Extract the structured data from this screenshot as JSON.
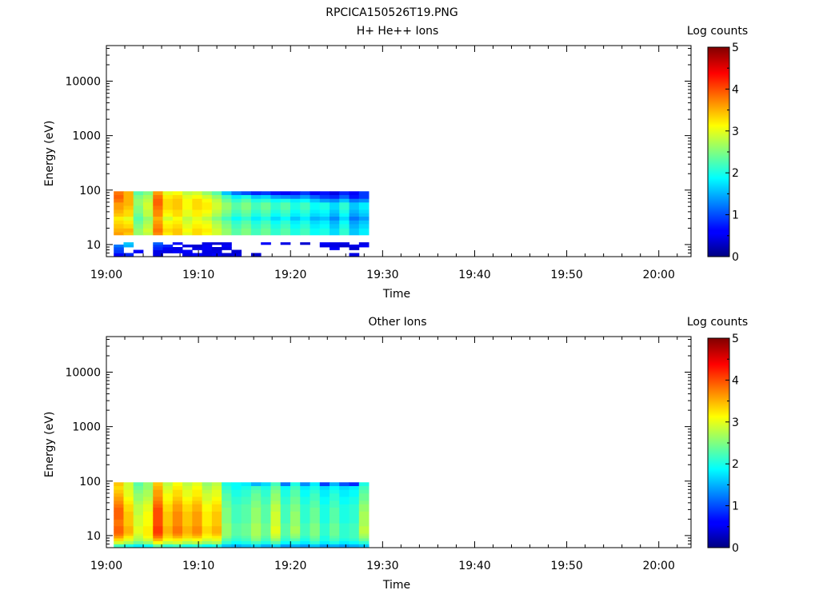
{
  "figure_title": "RPCICA150526T19.PNG",
  "chart_data": [
    {
      "type": "heatmap",
      "title": "H+ He++ Ions",
      "xlabel": "Time",
      "ylabel": "Energy (eV)",
      "x_tick_labels": [
        "19:00",
        "19:10",
        "19:20",
        "19:30",
        "19:40",
        "19:50",
        "20:00"
      ],
      "x_tick_minutes": [
        0,
        10,
        20,
        30,
        40,
        50,
        60
      ],
      "xlim_minutes": [
        0,
        63.5
      ],
      "y_scale": "log",
      "ylim": [
        6,
        45000
      ],
      "y_tick_labels": [
        "10",
        "100",
        "1000",
        "10000"
      ],
      "y_tick_values": [
        10,
        100,
        1000,
        10000
      ],
      "colorbar": {
        "label": "Log counts",
        "range": [
          0,
          5
        ],
        "tick_labels": [
          "0",
          "1",
          "2",
          "3",
          "4",
          "5"
        ]
      },
      "data_time_range_minutes": [
        0.8,
        28.5
      ],
      "bin_edges_eV": [
        6,
        7,
        8,
        9,
        10,
        11,
        13,
        15,
        17,
        20,
        24,
        28,
        33,
        38,
        44,
        52,
        60,
        70,
        82,
        95
      ],
      "z_columns": [
        [
          0.6,
          0.9,
          1.0,
          1.2,
          null,
          null,
          null,
          3.6,
          3.5,
          3.4,
          3.3,
          3.2,
          3.4,
          3.5,
          3.6,
          3.6,
          3.8,
          3.9,
          3.8
        ],
        [
          0.8,
          null,
          null,
          1.5,
          1.6,
          null,
          null,
          3.4,
          3.5,
          3.3,
          3.2,
          3.0,
          3.3,
          3.3,
          3.4,
          3.5,
          3.5,
          3.5,
          3.5
        ],
        [
          null,
          0.6,
          null,
          null,
          null,
          null,
          null,
          2.6,
          2.6,
          2.5,
          2.4,
          2.3,
          2.4,
          2.5,
          2.5,
          2.6,
          2.6,
          2.5,
          2.3
        ],
        [
          null,
          null,
          null,
          null,
          null,
          null,
          null,
          2.8,
          2.9,
          2.8,
          2.7,
          2.6,
          2.8,
          2.8,
          2.9,
          2.9,
          2.8,
          2.7,
          2.5
        ],
        [
          0.5,
          0.5,
          0.8,
          0.9,
          1.1,
          null,
          null,
          3.7,
          3.8,
          3.7,
          3.6,
          3.5,
          3.7,
          3.7,
          3.8,
          3.9,
          3.9,
          3.8,
          3.6
        ],
        [
          null,
          0.5,
          0.6,
          0.8,
          null,
          null,
          null,
          3.2,
          3.3,
          3.2,
          3.1,
          2.9,
          3.1,
          3.2,
          3.3,
          3.3,
          3.3,
          3.2,
          3.0
        ],
        [
          null,
          0.6,
          0.5,
          null,
          0.6,
          null,
          null,
          3.4,
          3.4,
          3.3,
          3.2,
          3.1,
          3.3,
          3.3,
          3.4,
          3.4,
          3.4,
          3.3,
          3.1
        ],
        [
          0.5,
          0.6,
          null,
          0.5,
          null,
          null,
          null,
          3.0,
          3.1,
          3.0,
          2.9,
          2.8,
          3.0,
          3.0,
          3.1,
          3.1,
          3.1,
          3.0,
          2.8
        ],
        [
          0.6,
          null,
          0.5,
          0.4,
          null,
          null,
          null,
          3.3,
          3.3,
          3.2,
          3.1,
          3.0,
          3.2,
          3.2,
          3.3,
          3.3,
          3.3,
          3.1,
          2.9
        ],
        [
          0.5,
          0.5,
          0.6,
          0.6,
          0.5,
          null,
          null,
          3.1,
          3.2,
          3.1,
          3.0,
          2.8,
          3.0,
          3.1,
          3.2,
          3.2,
          3.1,
          2.9,
          2.6
        ],
        [
          0.6,
          0.5,
          0.4,
          null,
          0.4,
          null,
          null,
          2.9,
          2.9,
          2.8,
          2.7,
          2.5,
          2.7,
          2.8,
          2.9,
          2.9,
          2.8,
          2.6,
          2.3
        ],
        [
          0.4,
          null,
          0.5,
          0.6,
          0.5,
          null,
          null,
          2.6,
          2.6,
          2.5,
          2.4,
          2.2,
          2.4,
          2.5,
          2.6,
          2.6,
          2.4,
          2.2,
          1.6
        ],
        [
          0.5,
          0.4,
          null,
          null,
          null,
          null,
          null,
          2.3,
          2.3,
          2.2,
          2.1,
          1.9,
          2.1,
          2.2,
          2.3,
          2.3,
          2.1,
          1.8,
          1.2
        ],
        [
          null,
          null,
          null,
          null,
          null,
          null,
          null,
          2.5,
          2.5,
          2.4,
          2.3,
          2.1,
          2.3,
          2.4,
          2.5,
          2.5,
          2.3,
          2.0,
          1.0
        ],
        [
          0.4,
          null,
          null,
          null,
          null,
          null,
          null,
          2.2,
          2.2,
          2.1,
          2.0,
          1.8,
          2.0,
          2.1,
          2.2,
          2.2,
          2.0,
          1.6,
          0.8
        ],
        [
          null,
          null,
          null,
          null,
          0.6,
          null,
          null,
          2.4,
          2.4,
          2.3,
          2.2,
          2.0,
          2.2,
          2.3,
          2.4,
          2.4,
          2.1,
          1.7,
          0.9
        ],
        [
          null,
          null,
          null,
          null,
          null,
          null,
          null,
          2.1,
          2.1,
          2.0,
          1.9,
          1.7,
          1.9,
          2.0,
          2.1,
          2.1,
          1.9,
          1.4,
          0.7
        ],
        [
          null,
          null,
          null,
          null,
          0.5,
          null,
          null,
          2.3,
          2.3,
          2.2,
          2.1,
          1.9,
          2.1,
          2.2,
          2.3,
          2.3,
          2.0,
          1.3,
          0.6
        ],
        [
          null,
          null,
          null,
          null,
          null,
          null,
          null,
          2.0,
          2.0,
          1.9,
          1.8,
          1.6,
          1.8,
          1.9,
          2.0,
          2.0,
          1.8,
          1.2,
          0.7
        ],
        [
          null,
          null,
          null,
          null,
          0.4,
          null,
          null,
          2.2,
          2.2,
          2.1,
          2.0,
          1.8,
          2.0,
          2.1,
          2.2,
          2.2,
          1.9,
          1.4,
          0.9
        ],
        [
          null,
          null,
          null,
          null,
          null,
          null,
          null,
          1.9,
          1.9,
          1.8,
          1.7,
          1.5,
          1.7,
          1.8,
          1.9,
          1.9,
          1.6,
          1.1,
          0.6
        ],
        [
          null,
          null,
          null,
          0.5,
          0.6,
          null,
          null,
          2.0,
          2.0,
          1.9,
          1.8,
          1.6,
          1.8,
          1.9,
          2.0,
          2.0,
          1.4,
          0.9,
          0.7
        ],
        [
          null,
          null,
          0.6,
          0.5,
          0.5,
          null,
          null,
          1.7,
          1.7,
          1.6,
          1.5,
          1.3,
          1.5,
          1.6,
          1.7,
          1.7,
          1.3,
          0.8,
          0.5
        ],
        [
          null,
          null,
          null,
          0.4,
          0.5,
          null,
          null,
          2.1,
          2.1,
          2.0,
          1.9,
          1.7,
          1.9,
          2.0,
          2.1,
          2.1,
          1.6,
          1.1,
          0.8
        ],
        [
          0.5,
          null,
          0.4,
          0.5,
          null,
          null,
          null,
          1.6,
          1.6,
          1.5,
          1.4,
          1.2,
          1.4,
          1.5,
          1.6,
          1.6,
          1.2,
          0.7,
          0.6
        ],
        [
          null,
          null,
          null,
          0.6,
          0.5,
          null,
          null,
          1.8,
          1.8,
          1.7,
          1.6,
          1.4,
          1.6,
          1.7,
          1.8,
          1.8,
          1.3,
          0.9,
          0.9
        ]
      ]
    },
    {
      "type": "heatmap",
      "title": "Other Ions",
      "xlabel": "Time",
      "ylabel": "Energy (eV)",
      "x_tick_labels": [
        "19:00",
        "19:10",
        "19:20",
        "19:30",
        "19:40",
        "19:50",
        "20:00"
      ],
      "x_tick_minutes": [
        0,
        10,
        20,
        30,
        40,
        50,
        60
      ],
      "xlim_minutes": [
        0,
        63.5
      ],
      "y_scale": "log",
      "ylim": [
        6,
        45000
      ],
      "y_tick_labels": [
        "10",
        "100",
        "1000",
        "10000"
      ],
      "y_tick_values": [
        10,
        100,
        1000,
        10000
      ],
      "colorbar": {
        "label": "Log counts",
        "range": [
          0,
          5
        ],
        "tick_labels": [
          "0",
          "1",
          "2",
          "3",
          "4",
          "5"
        ]
      },
      "data_time_range_minutes": [
        0.8,
        28.5
      ],
      "bin_edges_eV": [
        6,
        7,
        8,
        9,
        10,
        11,
        13,
        15,
        17,
        20,
        24,
        28,
        33,
        38,
        44,
        52,
        60,
        70,
        82,
        95
      ],
      "z_columns": [
        [
          2.2,
          2.9,
          3.3,
          3.6,
          3.8,
          3.9,
          3.9,
          3.8,
          3.8,
          3.9,
          3.9,
          3.9,
          3.8,
          3.7,
          3.6,
          3.5,
          3.4,
          3.3,
          3.4
        ],
        [
          2.0,
          2.7,
          3.0,
          3.2,
          3.4,
          3.5,
          3.5,
          3.4,
          3.4,
          3.4,
          3.4,
          3.3,
          3.3,
          3.2,
          3.1,
          3.0,
          3.0,
          2.9,
          2.9
        ],
        [
          1.8,
          2.4,
          2.7,
          2.8,
          2.9,
          3.0,
          3.0,
          2.9,
          2.9,
          2.9,
          2.8,
          2.8,
          2.8,
          2.7,
          2.6,
          2.6,
          2.5,
          2.4,
          2.3
        ],
        [
          1.9,
          2.6,
          2.9,
          3.1,
          3.2,
          3.2,
          3.2,
          3.1,
          3.1,
          3.1,
          3.1,
          3.0,
          3.0,
          2.9,
          2.8,
          2.7,
          2.7,
          2.6,
          2.6
        ],
        [
          2.4,
          3.1,
          3.5,
          3.8,
          4.0,
          4.1,
          4.1,
          4.0,
          4.0,
          4.0,
          4.0,
          4.0,
          3.9,
          3.8,
          3.7,
          3.6,
          3.6,
          3.5,
          3.4
        ],
        [
          2.1,
          2.8,
          3.1,
          3.3,
          3.4,
          3.5,
          3.5,
          3.4,
          3.4,
          3.4,
          3.4,
          3.3,
          3.3,
          3.2,
          3.1,
          3.1,
          3.0,
          2.9,
          2.8
        ],
        [
          2.2,
          2.9,
          3.2,
          3.5,
          3.7,
          3.8,
          3.8,
          3.7,
          3.7,
          3.7,
          3.7,
          3.6,
          3.6,
          3.5,
          3.4,
          3.3,
          3.3,
          3.2,
          3.1
        ],
        [
          2.0,
          2.7,
          3.0,
          3.3,
          3.4,
          3.5,
          3.5,
          3.4,
          3.4,
          3.4,
          3.4,
          3.3,
          3.3,
          3.2,
          3.1,
          3.0,
          3.0,
          2.9,
          2.8
        ],
        [
          2.1,
          2.8,
          3.1,
          3.4,
          3.6,
          3.7,
          3.7,
          3.6,
          3.6,
          3.6,
          3.6,
          3.5,
          3.5,
          3.4,
          3.3,
          3.2,
          3.2,
          3.1,
          3.0
        ],
        [
          1.9,
          2.6,
          2.9,
          3.1,
          3.2,
          3.3,
          3.3,
          3.2,
          3.2,
          3.2,
          3.2,
          3.1,
          3.1,
          3.0,
          2.9,
          2.9,
          2.8,
          2.7,
          2.6
        ],
        [
          2.0,
          2.7,
          3.0,
          3.2,
          3.4,
          3.5,
          3.5,
          3.4,
          3.4,
          3.4,
          3.4,
          3.3,
          3.3,
          3.2,
          3.1,
          3.0,
          3.0,
          2.9,
          2.8
        ],
        [
          1.6,
          2.1,
          2.3,
          2.5,
          2.6,
          2.6,
          2.6,
          2.6,
          2.5,
          2.5,
          2.5,
          2.5,
          2.4,
          2.4,
          2.3,
          2.3,
          2.2,
          2.1,
          2.0
        ],
        [
          1.5,
          1.9,
          2.1,
          2.2,
          2.3,
          2.3,
          2.3,
          2.3,
          2.2,
          2.2,
          2.2,
          2.2,
          2.2,
          2.1,
          2.1,
          2.0,
          2.0,
          1.9,
          1.9
        ],
        [
          1.6,
          2.0,
          2.2,
          2.3,
          2.4,
          2.4,
          2.4,
          2.4,
          2.3,
          2.3,
          2.3,
          2.3,
          2.3,
          2.2,
          2.2,
          2.1,
          2.1,
          2.0,
          1.8
        ],
        [
          1.7,
          2.2,
          2.5,
          2.6,
          2.7,
          2.7,
          2.7,
          2.7,
          2.6,
          2.6,
          2.6,
          2.6,
          2.5,
          2.5,
          2.4,
          2.4,
          2.3,
          2.2,
          1.5
        ],
        [
          1.5,
          2.0,
          2.2,
          2.3,
          2.4,
          2.4,
          2.4,
          2.4,
          2.3,
          2.3,
          2.3,
          2.3,
          2.3,
          2.2,
          2.2,
          2.1,
          2.1,
          2.0,
          1.7
        ],
        [
          1.7,
          2.3,
          2.6,
          2.8,
          2.9,
          3.0,
          3.0,
          2.9,
          2.9,
          2.9,
          2.9,
          2.8,
          2.8,
          2.7,
          2.6,
          2.6,
          2.5,
          2.4,
          2.2
        ],
        [
          1.4,
          1.9,
          2.1,
          2.2,
          2.3,
          2.3,
          2.3,
          2.3,
          2.2,
          2.2,
          2.2,
          2.2,
          2.2,
          2.1,
          2.1,
          2.0,
          2.0,
          1.9,
          1.2
        ],
        [
          1.5,
          2.0,
          2.3,
          2.5,
          2.6,
          2.7,
          2.7,
          2.6,
          2.6,
          2.6,
          2.6,
          2.5,
          2.5,
          2.4,
          2.4,
          2.3,
          2.3,
          2.2,
          2.0
        ],
        [
          1.4,
          1.8,
          2.0,
          2.1,
          2.2,
          2.2,
          2.2,
          2.2,
          2.1,
          2.1,
          2.1,
          2.1,
          2.1,
          2.0,
          2.0,
          1.9,
          1.9,
          1.8,
          1.3
        ],
        [
          1.6,
          2.1,
          2.3,
          2.4,
          2.5,
          2.5,
          2.5,
          2.5,
          2.4,
          2.4,
          2.4,
          2.4,
          2.3,
          2.3,
          2.2,
          2.2,
          2.1,
          2.0,
          1.8
        ],
        [
          1.4,
          1.8,
          2.0,
          2.0,
          2.1,
          2.1,
          2.1,
          2.1,
          2.0,
          2.0,
          2.0,
          2.0,
          2.0,
          1.9,
          1.9,
          1.8,
          1.8,
          1.7,
          0.9
        ],
        [
          1.5,
          2.0,
          2.2,
          2.3,
          2.4,
          2.4,
          2.4,
          2.4,
          2.3,
          2.3,
          2.3,
          2.3,
          2.2,
          2.2,
          2.1,
          2.1,
          2.0,
          1.9,
          1.5
        ],
        [
          1.4,
          1.8,
          2.0,
          2.1,
          2.1,
          2.1,
          2.1,
          2.1,
          2.0,
          2.0,
          2.0,
          2.0,
          2.0,
          1.9,
          1.9,
          1.8,
          1.8,
          1.7,
          1.0
        ],
        [
          1.5,
          1.9,
          2.1,
          2.2,
          2.2,
          2.2,
          2.2,
          2.2,
          2.1,
          2.1,
          2.1,
          2.1,
          2.1,
          2.0,
          2.0,
          1.9,
          1.9,
          1.8,
          0.8
        ],
        [
          1.6,
          2.1,
          2.4,
          2.6,
          2.7,
          2.8,
          2.8,
          2.7,
          2.7,
          2.7,
          2.7,
          2.6,
          2.6,
          2.5,
          2.4,
          2.4,
          2.3,
          2.2,
          2.0
        ]
      ]
    }
  ]
}
